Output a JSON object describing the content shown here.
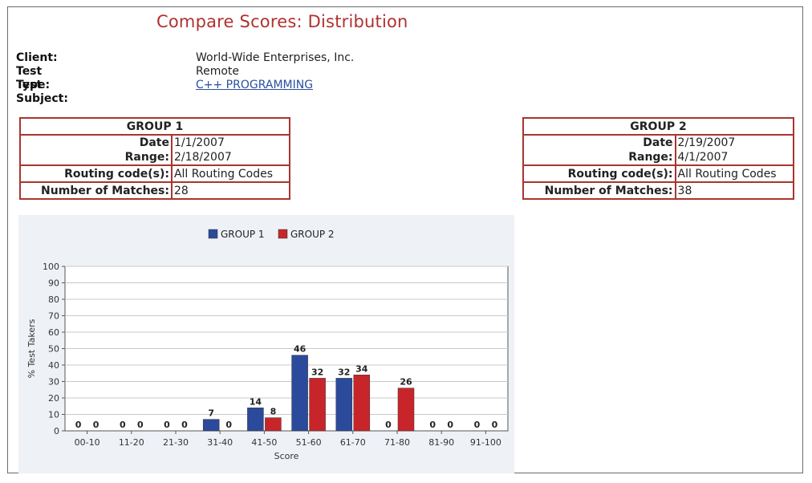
{
  "title": "Compare Scores: Distribution",
  "info": [
    {
      "label": "Client:",
      "value": "World-Wide Enterprises, Inc."
    },
    {
      "label": "Test Type:",
      "value": "Remote"
    },
    {
      "label": "Test Subject:",
      "value": "C++ PROGRAMMING"
    }
  ],
  "groups": [
    {
      "header": "GROUP 1",
      "date_label": "Date",
      "date_value": "1/1/2007",
      "range_label": "Range:",
      "range_value": "2/18/2007",
      "routing_label": "Routing code(s):",
      "routing_value": "All Routing Codes",
      "matches_label": "Number of Matches:",
      "matches_value": "28"
    },
    {
      "header": "GROUP 2",
      "date_label": "Date",
      "date_value": "2/19/2007",
      "range_label": "Range:",
      "range_value": "4/1/2007",
      "routing_label": "Routing code(s):",
      "routing_value": "All Routing Codes",
      "matches_label": "Number of Matches:",
      "matches_value": "38"
    }
  ],
  "chart_data": {
    "type": "bar",
    "categories": [
      "00-10",
      "11-20",
      "21-30",
      "31-40",
      "41-50",
      "51-60",
      "61-70",
      "71-80",
      "81-90",
      "91-100"
    ],
    "series": [
      {
        "name": "GROUP 1",
        "values": [
          0,
          0,
          0,
          7,
          14,
          46,
          32,
          0,
          0,
          0
        ],
        "color": "#2b4a9b"
      },
      {
        "name": "GROUP 2",
        "values": [
          0,
          0,
          0,
          0,
          8,
          32,
          34,
          26,
          0,
          0
        ],
        "color": "#c8252a"
      }
    ],
    "yticks": [
      0,
      10,
      20,
      30,
      40,
      50,
      60,
      70,
      80,
      90,
      100
    ],
    "ylim": [
      0,
      100
    ],
    "xlabel": "Score",
    "ylabel": "% Test Takers",
    "legend": "top-center",
    "grid": true
  }
}
